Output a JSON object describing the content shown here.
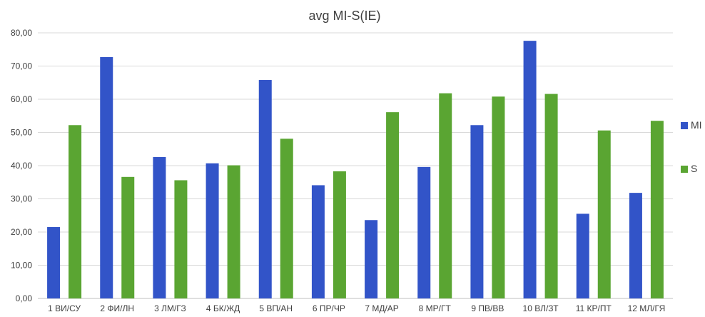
{
  "chart_data": {
    "type": "bar",
    "title": "avg MI-S(IE)",
    "xlabel": "",
    "ylabel": "",
    "ylim": [
      0,
      80
    ],
    "ytick_step": 10,
    "ytick_labels": [
      "0,00",
      "10,00",
      "20,00",
      "30,00",
      "40,00",
      "50,00",
      "60,00",
      "70,00",
      "80,00"
    ],
    "grid": true,
    "legend_position": "right",
    "categories": [
      "1 ВИ/СУ",
      "2 ФИ/ЛН",
      "3 ЛМ/ГЗ",
      "4 БК/ЖД",
      "5 ВП/АН",
      "6 ПР/ЧР",
      "7 МД/АР",
      "8 МР/ГТ",
      "9 ПВ/ВВ",
      "10 ВЛ/ЗТ",
      "11 КР/ПТ",
      "12 МЛ/ГЯ"
    ],
    "series": [
      {
        "name": "MI",
        "color": "#3254c8",
        "values": [
          21.5,
          72.7,
          42.6,
          40.7,
          65.8,
          34.1,
          23.6,
          39.6,
          52.2,
          77.6,
          25.5,
          31.8
        ]
      },
      {
        "name": "S",
        "color": "#5aa532",
        "values": [
          52.2,
          36.6,
          35.6,
          40.1,
          48.1,
          38.3,
          56.1,
          61.8,
          60.8,
          61.6,
          50.6,
          53.5
        ]
      }
    ]
  }
}
